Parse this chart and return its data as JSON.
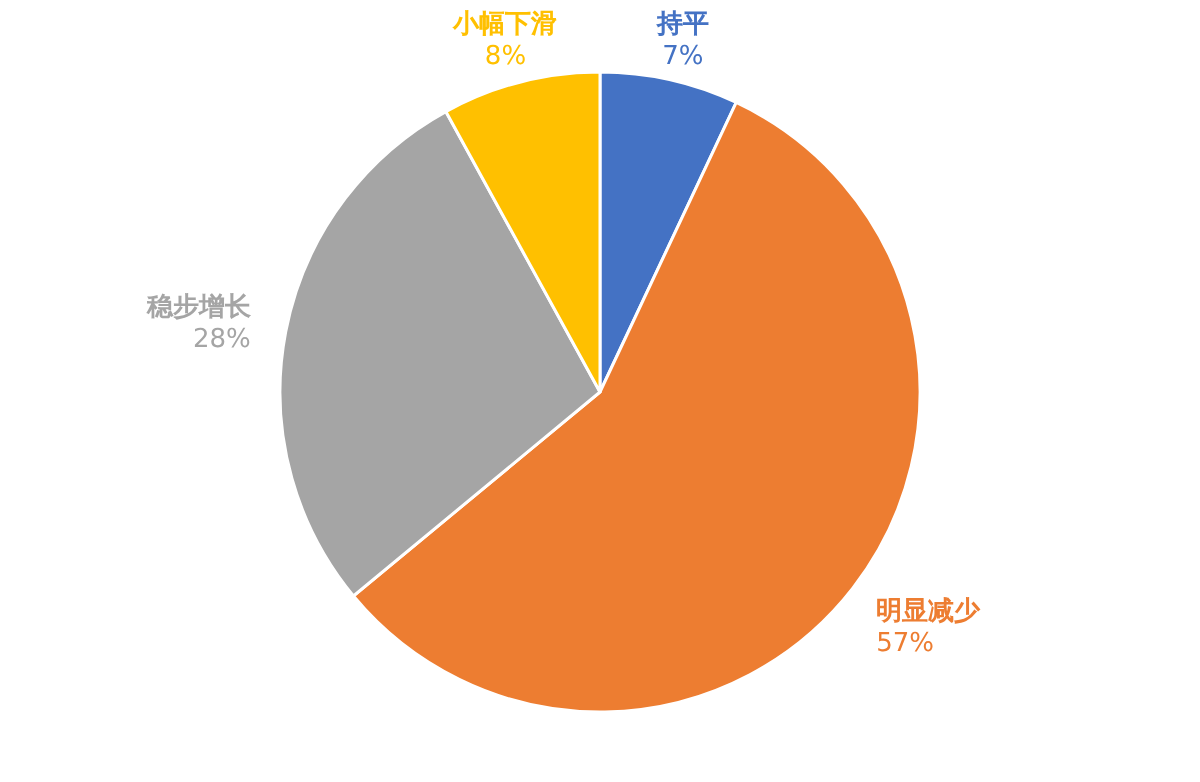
{
  "chart_data": {
    "type": "pie",
    "categories": [
      "持平",
      "明显减少",
      "稳步增长",
      "小幅下滑"
    ],
    "values": [
      7,
      57,
      28,
      8
    ],
    "colors": [
      "#4472c4",
      "#ed7d31",
      "#a5a5a5",
      "#ffc000"
    ],
    "value_labels": [
      "7%",
      "57%",
      "28%",
      "8%"
    ]
  }
}
